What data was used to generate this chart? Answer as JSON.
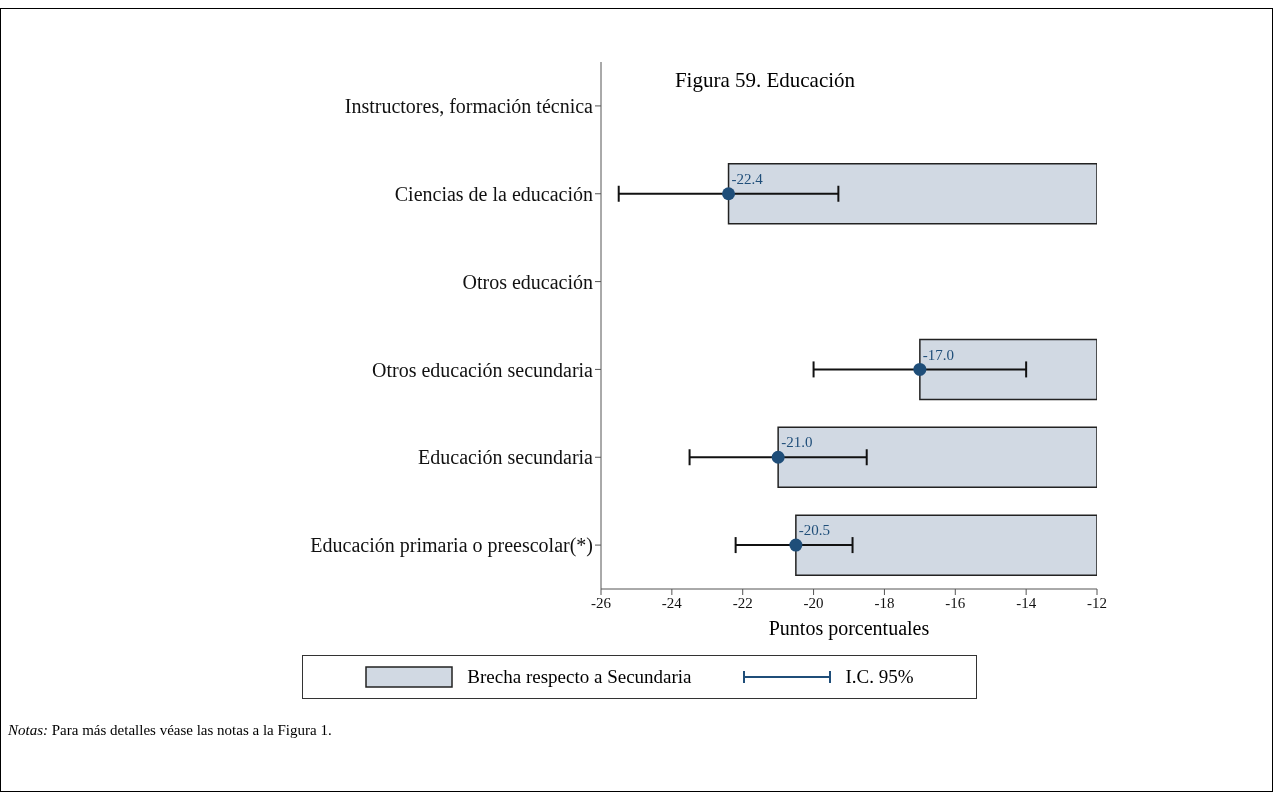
{
  "chart_data": {
    "type": "bar",
    "orientation": "horizontal",
    "title": "Figura 59. Educación",
    "xlabel": "Puntos porcentuales",
    "categories": [
      "Instructores, formación técnica",
      "Ciencias de la educación",
      "Otros educación",
      "Otros educación secundaria",
      "Educación secundaria",
      "Educación primaria o preescolar(*)"
    ],
    "series": [
      {
        "name": "Brecha respecto a Secundaria",
        "type": "bar",
        "color": "#d1d9e3",
        "values": [
          null,
          -22.4,
          null,
          -17.0,
          -21.0,
          -20.5
        ],
        "value_labels": [
          null,
          "-22.4",
          null,
          "-17.0",
          "-21.0",
          "-20.5"
        ]
      },
      {
        "name": "I.C. 95%",
        "type": "scatter",
        "color": "#1f4e79",
        "x": [
          "Ciencias de la educación",
          "Otros educación secundaria",
          "Educación secundaria",
          "Educación primaria o preescolar(*)"
        ],
        "values": [
          -22.4,
          -17.0,
          -21.0,
          -20.5
        ],
        "errors": [
          [
            -25.5,
            -19.3
          ],
          [
            -20.0,
            -14.0
          ],
          [
            -23.5,
            -18.5
          ],
          [
            -22.2,
            -18.9
          ]
        ]
      }
    ],
    "xlim": [
      -26,
      -12
    ],
    "xticks": [
      -26,
      -24,
      -22,
      -20,
      -18,
      -16,
      -14,
      -12
    ],
    "legend": "bottom",
    "marker": "circle",
    "grid": false,
    "annotations": [
      "Notas: Para más detalles véase las notas a la Figura 1."
    ]
  }
}
